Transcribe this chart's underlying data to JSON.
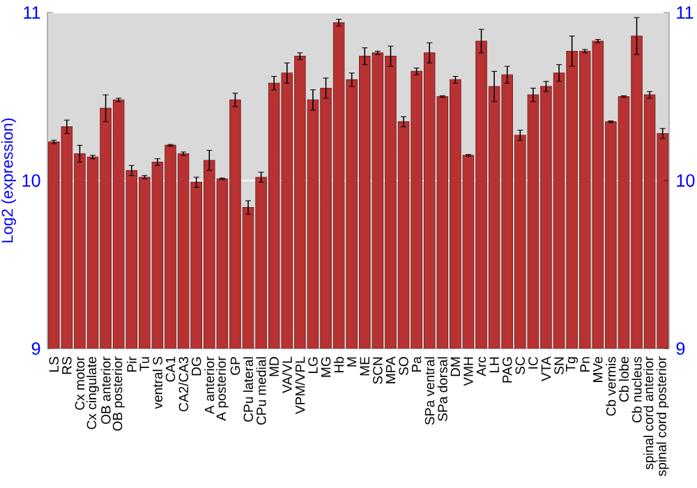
{
  "chart_data": {
    "type": "bar",
    "ylabel": "Log2 (expression)",
    "categories": [
      "LS",
      "RS",
      "Cx motor",
      "Cx cingulate",
      "OB anterior",
      "OB posterior",
      "Pir",
      "Tu",
      "ventral S",
      "CA1",
      "CA2/CA3",
      "DG",
      "A anterior",
      "A posterior",
      "GP",
      "CPu lateral",
      "CPu medial",
      "MD",
      "VA/VL",
      "VPM/VPL",
      "LG",
      "MG",
      "Hb",
      "M",
      "ME",
      "SCN",
      "MPA",
      "SO",
      "Pa",
      "SPa ventral",
      "SPa dorsal",
      "DM",
      "VMH",
      "Arc",
      "LH",
      "PAG",
      "SC",
      "IC",
      "VTA",
      "SN",
      "Tg",
      "Pn",
      "MVe",
      "Cb vermis",
      "Cb lobe",
      "Cb nucleus",
      "spinal cord anterior",
      "spinal cord posterior"
    ],
    "values": [
      10.23,
      10.32,
      10.16,
      10.14,
      10.43,
      10.48,
      10.06,
      10.02,
      10.11,
      10.21,
      10.16,
      9.99,
      10.12,
      10.01,
      10.48,
      9.84,
      10.02,
      10.58,
      10.64,
      10.74,
      10.48,
      10.55,
      10.94,
      10.6,
      10.74,
      10.76,
      10.74,
      10.35,
      10.65,
      10.76,
      10.5,
      10.6,
      10.15,
      10.83,
      10.56,
      10.63,
      10.27,
      10.51,
      10.56,
      10.64,
      10.77,
      10.77,
      10.83,
      10.35,
      10.5,
      10.86,
      10.51,
      10.28
    ],
    "errors": [
      0.01,
      0.04,
      0.05,
      0.01,
      0.08,
      0.01,
      0.03,
      0.01,
      0.02,
      0.005,
      0.01,
      0.03,
      0.06,
      0.005,
      0.04,
      0.04,
      0.03,
      0.04,
      0.06,
      0.02,
      0.06,
      0.06,
      0.02,
      0.04,
      0.05,
      0.01,
      0.06,
      0.03,
      0.02,
      0.06,
      0.005,
      0.02,
      0.005,
      0.07,
      0.09,
      0.05,
      0.03,
      0.04,
      0.03,
      0.05,
      0.09,
      0.01,
      0.01,
      0.005,
      0.005,
      0.11,
      0.02,
      0.03
    ],
    "color": "#b83232",
    "ylim": [
      9,
      11
    ],
    "yticks": [
      9,
      10,
      11
    ],
    "y2lim": [
      9,
      11
    ],
    "y2ticks": [
      9,
      10,
      11
    ],
    "grid": "y"
  }
}
